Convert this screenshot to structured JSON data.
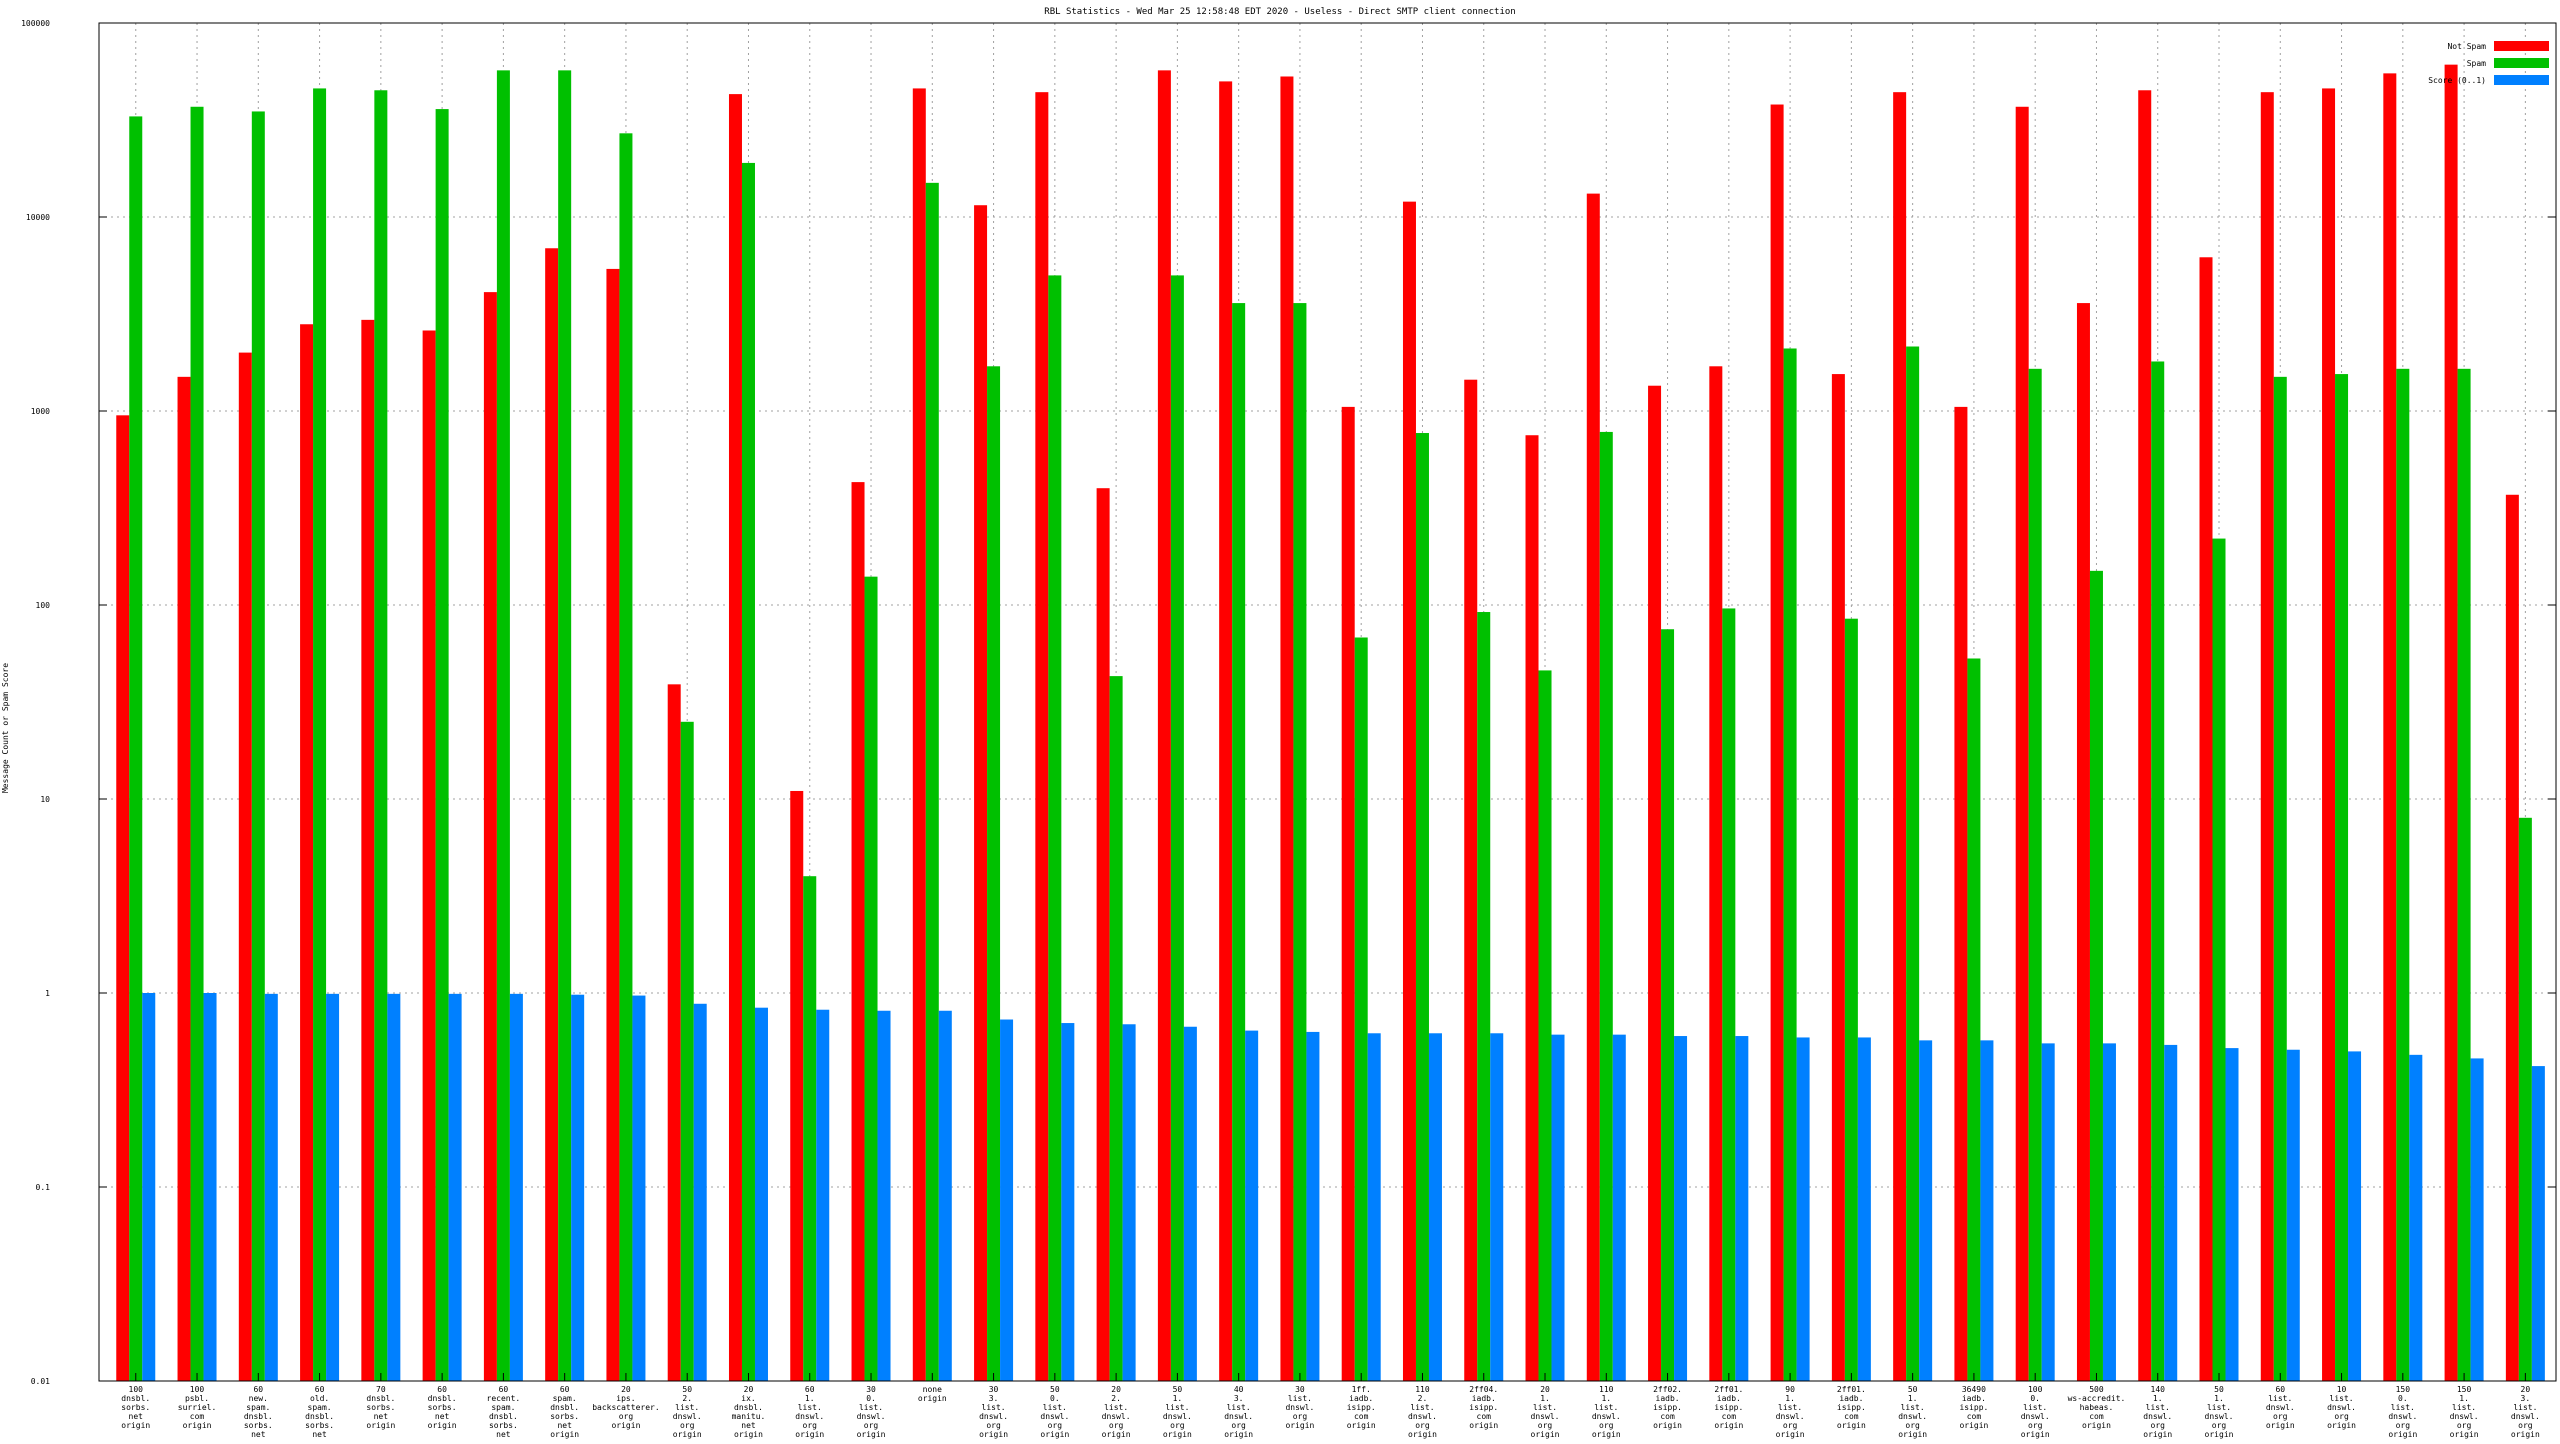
{
  "chart_data": {
    "type": "bar",
    "title": "RBL Statistics - Wed Mar 25 12:58:48 EDT 2020 - Useless - Direct SMTP client connection",
    "xlabel": "",
    "ylabel": "Message Count or Spam Score",
    "yscale": "log",
    "ylim": [
      0.01,
      100000
    ],
    "yticks": [
      "0.01",
      "0.1",
      "1",
      "10",
      "100",
      "1000",
      "10000",
      "100000"
    ],
    "grid": true,
    "legend_position": "top-right",
    "categories": [
      [
        "100",
        "dnsbl.",
        "sorbs.",
        "net",
        "origin"
      ],
      [
        "100",
        "psbl.",
        "surriel.",
        "com",
        "origin"
      ],
      [
        "60",
        "new.",
        "spam.",
        "dnsbl.",
        "sorbs.",
        "net",
        "origin"
      ],
      [
        "60",
        "old.",
        "spam.",
        "dnsbl.",
        "sorbs.",
        "net",
        "origin"
      ],
      [
        "70",
        "dnsbl.",
        "sorbs.",
        "net",
        "origin"
      ],
      [
        "60",
        "dnsbl.",
        "sorbs.",
        "net",
        "origin"
      ],
      [
        "60",
        "recent.",
        "spam.",
        "dnsbl.",
        "sorbs.",
        "net",
        "origin"
      ],
      [
        "60",
        "spam.",
        "dnsbl.",
        "sorbs.",
        "net",
        "origin"
      ],
      [
        "20",
        "ips.",
        "backscatterer.",
        "org",
        "origin"
      ],
      [
        "50",
        "2.",
        "list.",
        "dnswl.",
        "org",
        "origin"
      ],
      [
        "20",
        "ix.",
        "dnsbl.",
        "manitu.",
        "net",
        "origin"
      ],
      [
        "60",
        "1.",
        "list.",
        "dnswl.",
        "org",
        "origin"
      ],
      [
        "30",
        "0.",
        "list.",
        "dnswl.",
        "org",
        "origin"
      ],
      [
        "none",
        "origin"
      ],
      [
        "30",
        "3.",
        "list.",
        "dnswl.",
        "org",
        "origin"
      ],
      [
        "50",
        "0.",
        "list.",
        "dnswl.",
        "org",
        "origin"
      ],
      [
        "20",
        "2.",
        "list.",
        "dnswl.",
        "org",
        "origin"
      ],
      [
        "50",
        "1.",
        "list.",
        "dnswl.",
        "org",
        "origin"
      ],
      [
        "40",
        "3.",
        "list.",
        "dnswl.",
        "org",
        "origin"
      ],
      [
        "30",
        "list.",
        "dnswl.",
        "org",
        "origin"
      ],
      [
        "1ff.",
        "iadb.",
        "isipp.",
        "com",
        "origin"
      ],
      [
        "110",
        "2.",
        "list.",
        "dnswl.",
        "org",
        "origin"
      ],
      [
        "2ff04.",
        "iadb.",
        "isipp.",
        "com",
        "origin"
      ],
      [
        "20",
        "1.",
        "list.",
        "dnswl.",
        "org",
        "origin"
      ],
      [
        "110",
        "1.",
        "list.",
        "dnswl.",
        "org",
        "origin"
      ],
      [
        "2ff02.",
        "iadb.",
        "isipp.",
        "com",
        "origin"
      ],
      [
        "2ff01.",
        "iadb.",
        "isipp.",
        "com",
        "origin"
      ],
      [
        "90",
        "1.",
        "list.",
        "dnswl.",
        "org",
        "origin"
      ],
      [
        "2ff01.",
        "iadb.",
        "isipp.",
        "com",
        "origin"
      ],
      [
        "50",
        "1.",
        "list.",
        "dnswl.",
        "org",
        "origin"
      ],
      [
        "36490",
        "iadb.",
        "isipp.",
        "com",
        "origin"
      ],
      [
        "100",
        "0.",
        "list.",
        "dnswl.",
        "org",
        "origin"
      ],
      [
        "500",
        "ws-accredit.",
        "habeas.",
        "com",
        "origin"
      ],
      [
        "140",
        "1.",
        "list.",
        "dnswl.",
        "org",
        "origin"
      ],
      [
        "50",
        "1.",
        "list.",
        "dnswl.",
        "org",
        "origin"
      ],
      [
        "60",
        "list.",
        "dnswl.",
        "org",
        "origin"
      ],
      [
        "10",
        "list.",
        "dnswl.",
        "org",
        "origin"
      ],
      [
        "150",
        "0.",
        "list.",
        "dnswl.",
        "org",
        "origin"
      ],
      [
        "150",
        "1.",
        "list.",
        "dnswl.",
        "org",
        "origin"
      ],
      [
        "20",
        "3.",
        "list.",
        "dnswl.",
        "org",
        "origin"
      ]
    ],
    "series": [
      {
        "name": "Not Spam",
        "color": "#ff0000",
        "values": [
          950,
          1500,
          2000,
          2800,
          2950,
          2600,
          4100,
          6900,
          5400,
          39,
          43000,
          11,
          430,
          46000,
          11500,
          44000,
          400,
          57000,
          50000,
          53000,
          1050,
          12000,
          1450,
          750,
          13200,
          1350,
          1700,
          38000,
          1550,
          44000,
          1050,
          37000,
          3600,
          45000,
          6200,
          44000,
          46000,
          55000,
          61000,
          370
        ]
      },
      {
        "name": "Spam",
        "color": "#00c000",
        "values": [
          33000,
          37000,
          35000,
          46000,
          45000,
          36000,
          57000,
          57000,
          27000,
          25,
          19000,
          4,
          140,
          15000,
          1700,
          5000,
          43,
          5000,
          3600,
          3600,
          68,
          770,
          92,
          46,
          780,
          75,
          96,
          2100,
          85,
          2150,
          53,
          1650,
          150,
          1800,
          220,
          1500,
          1550,
          1650,
          1650,
          8
        ]
      },
      {
        "name": "Score (0..1)",
        "color": "#0080ff",
        "values": [
          1.0,
          1.0,
          0.99,
          0.99,
          0.99,
          0.99,
          0.99,
          0.98,
          0.97,
          0.88,
          0.84,
          0.82,
          0.81,
          0.81,
          0.73,
          0.7,
          0.69,
          0.67,
          0.64,
          0.63,
          0.62,
          0.62,
          0.62,
          0.61,
          0.61,
          0.6,
          0.6,
          0.59,
          0.59,
          0.57,
          0.57,
          0.55,
          0.55,
          0.54,
          0.52,
          0.51,
          0.5,
          0.48,
          0.46,
          0.42
        ]
      }
    ]
  }
}
